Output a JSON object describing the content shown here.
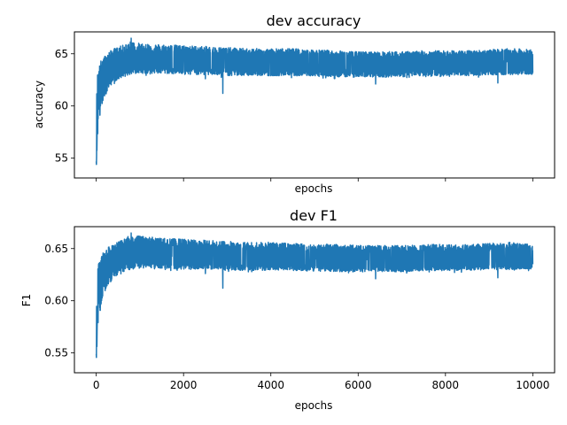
{
  "chart_data": [
    {
      "type": "line",
      "title": "dev accuracy",
      "xlabel": "epochs",
      "ylabel": "accuracy",
      "xlim": [
        -500,
        10500
      ],
      "ylim": [
        53.1,
        67.1
      ],
      "xticks": [
        0,
        2000,
        4000,
        6000,
        8000,
        10000
      ],
      "xticklabels_shown": false,
      "yticks": [
        55,
        60,
        65
      ],
      "ytick_labels": [
        "55",
        "60",
        "65"
      ],
      "grid": false,
      "color": "#1f77b4",
      "series": [
        {
          "envelope": {
            "x": [
              0,
              20,
              50,
              100,
              150,
              200,
              300,
              400,
              600,
              800,
              1000,
              1500,
              2000,
              2500,
              3000,
              3500,
              4000,
              4500,
              5000,
              5500,
              6000,
              6500,
              7000,
              7500,
              8000,
              8500,
              9000,
              9500,
              10000
            ],
            "upper": [
              59.0,
              63.0,
              63.5,
              64.3,
              64.6,
              64.8,
              65.2,
              65.5,
              65.8,
              66.2,
              66.0,
              65.9,
              65.8,
              65.7,
              65.6,
              65.5,
              65.5,
              65.5,
              65.4,
              65.3,
              65.2,
              65.2,
              65.2,
              65.3,
              65.3,
              65.3,
              65.4,
              65.5,
              65.4
            ],
            "lower": [
              53.7,
              55.0,
              57.8,
              58.5,
              60.0,
              60.5,
              61.5,
              62.0,
              62.5,
              62.8,
              62.9,
              62.9,
              62.8,
              62.8,
              62.7,
              62.7,
              62.7,
              62.7,
              62.7,
              62.6,
              62.6,
              62.6,
              62.6,
              62.7,
              62.7,
              62.7,
              62.8,
              62.8,
              62.9
            ],
            "center": [
              56.0,
              60.5,
              61.5,
              62.5,
              63.0,
              63.3,
              63.6,
              63.9,
              64.1,
              64.3,
              64.4,
              64.3,
              64.2,
              64.1,
              64.1,
              64.0,
              64.0,
              64.0,
              63.9,
              63.9,
              63.8,
              63.8,
              63.8,
              63.9,
              63.9,
              63.9,
              64.0,
              64.0,
              64.0
            ]
          },
          "outliers": [
            [
              800,
              66.5
            ],
            [
              2900,
              61.2
            ],
            [
              2500,
              62.6
            ],
            [
              6400,
              62.1
            ],
            [
              9200,
              62.2
            ]
          ]
        }
      ]
    },
    {
      "type": "line",
      "title": "dev F1",
      "xlabel": "epochs",
      "ylabel": "F1",
      "xlim": [
        -500,
        10500
      ],
      "ylim": [
        0.531,
        0.671
      ],
      "xticks": [
        0,
        2000,
        4000,
        6000,
        8000,
        10000
      ],
      "xtick_labels": [
        "0",
        "2000",
        "4000",
        "6000",
        "8000",
        "10000"
      ],
      "yticks": [
        0.55,
        0.6,
        0.65
      ],
      "ytick_labels": [
        "0.55",
        "0.60",
        "0.65"
      ],
      "grid": false,
      "color": "#1f77b4",
      "series": [
        {
          "envelope": {
            "x": [
              0,
              20,
              50,
              100,
              150,
              200,
              300,
              400,
              600,
              800,
              1000,
              1500,
              2000,
              2500,
              3000,
              3500,
              4000,
              4500,
              5000,
              5500,
              6000,
              6500,
              7000,
              7500,
              8000,
              8500,
              9000,
              9500,
              10000
            ],
            "upper": [
              0.59,
              0.63,
              0.635,
              0.643,
              0.646,
              0.648,
              0.652,
              0.655,
              0.658,
              0.664,
              0.662,
              0.66,
              0.659,
              0.658,
              0.657,
              0.656,
              0.656,
              0.655,
              0.654,
              0.654,
              0.653,
              0.653,
              0.653,
              0.654,
              0.654,
              0.654,
              0.655,
              0.656,
              0.654
            ],
            "lower": [
              0.537,
              0.55,
              0.578,
              0.585,
              0.6,
              0.605,
              0.615,
              0.62,
              0.625,
              0.628,
              0.629,
              0.629,
              0.628,
              0.628,
              0.627,
              0.627,
              0.627,
              0.627,
              0.627,
              0.626,
              0.626,
              0.626,
              0.626,
              0.627,
              0.627,
              0.627,
              0.628,
              0.628,
              0.629
            ],
            "center": [
              0.56,
              0.605,
              0.615,
              0.625,
              0.63,
              0.633,
              0.636,
              0.639,
              0.641,
              0.643,
              0.644,
              0.643,
              0.642,
              0.641,
              0.641,
              0.64,
              0.64,
              0.64,
              0.639,
              0.639,
              0.638,
              0.638,
              0.638,
              0.639,
              0.639,
              0.639,
              0.64,
              0.64,
              0.64
            ]
          },
          "outliers": [
            [
              800,
              0.665
            ],
            [
              2900,
              0.612
            ],
            [
              2500,
              0.626
            ],
            [
              6400,
              0.621
            ],
            [
              9200,
              0.622
            ]
          ]
        }
      ]
    }
  ]
}
